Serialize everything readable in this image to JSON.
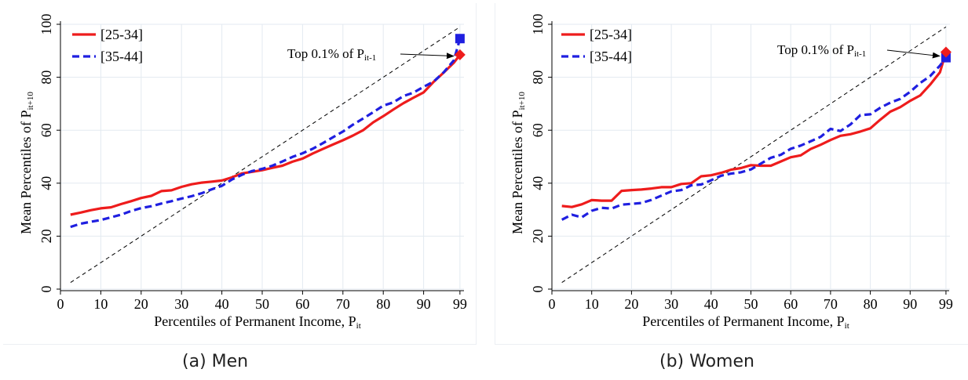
{
  "captions": {
    "panel_a": "(a) Men",
    "panel_b": "(b) Women"
  },
  "colors": {
    "series_25_34": "#ee1c1c",
    "series_35_44": "#1f1fe0",
    "diagonal": "#000000",
    "grid": "#e3eaf0"
  },
  "chart_data": [
    {
      "panel": "men",
      "type": "line",
      "xlabel": "Percentiles of Permanent Income, P",
      "xlabel_sub": "it",
      "ylabel": "Mean Percentiles of P",
      "ylabel_sub": "it+10",
      "xlim": [
        0,
        100
      ],
      "ylim": [
        0,
        100
      ],
      "xticks": [
        0,
        10,
        20,
        30,
        40,
        50,
        60,
        70,
        80,
        90,
        99
      ],
      "yticks": [
        0,
        20,
        40,
        60,
        80,
        100
      ],
      "grid": true,
      "legend": {
        "position": "top-left",
        "entries": [
          "[25-34]",
          "[35-44]"
        ]
      },
      "annotation": {
        "text": "Top 0.1% of P",
        "sub": "it-1",
        "arrow_to": [
          99,
          88
        ]
      },
      "diagonal": [
        [
          2.5,
          2.5
        ],
        [
          99,
          99
        ]
      ],
      "series": [
        {
          "name": "[25-34]",
          "style": "solid",
          "x": [
            2.5,
            5,
            7.5,
            10,
            12.5,
            15,
            17.5,
            20,
            22.5,
            25,
            27.5,
            30,
            32.5,
            35,
            37.5,
            40,
            42.5,
            45,
            47.5,
            50,
            52.5,
            55,
            57.5,
            60,
            62.5,
            65,
            67.5,
            70,
            72.5,
            75,
            77.5,
            80,
            82.5,
            85,
            87.5,
            90,
            92.5,
            95,
            97.5,
            99
          ],
          "y": [
            28.1,
            28.9,
            29.8,
            30.5,
            30.9,
            32.1,
            33.2,
            34.4,
            35.2,
            37.0,
            37.3,
            38.6,
            39.6,
            40.2,
            40.6,
            41.0,
            42.2,
            43.7,
            44.3,
            44.9,
            45.8,
            46.6,
            48.1,
            49.3,
            51.2,
            52.9,
            54.6,
            56.2,
            58.0,
            60.0,
            63.0,
            65.3,
            67.8,
            70.2,
            72.3,
            74.3,
            78.3,
            81.8,
            85.5,
            88.5
          ]
        },
        {
          "name": "[35-44]",
          "style": "dashed",
          "x": [
            2.5,
            5,
            7.5,
            10,
            12.5,
            15,
            17.5,
            20,
            22.5,
            25,
            27.5,
            30,
            32.5,
            35,
            37.5,
            40,
            42.5,
            45,
            47.5,
            50,
            52.5,
            55,
            57.5,
            60,
            62.5,
            65,
            67.5,
            70,
            72.5,
            75,
            77.5,
            80,
            82.5,
            85,
            87.5,
            90,
            92.5,
            95,
            97.5,
            99
          ],
          "y": [
            23.5,
            24.7,
            25.4,
            26.1,
            27.1,
            28.1,
            29.5,
            30.6,
            31.3,
            32.3,
            33.2,
            34.2,
            35.1,
            36.2,
            37.7,
            39.0,
            41.4,
            43.2,
            44.6,
            45.4,
            46.6,
            48.2,
            49.9,
            51.3,
            53.0,
            55.1,
            57.3,
            59.5,
            62.1,
            64.4,
            66.8,
            69.3,
            70.5,
            72.9,
            74.2,
            76.4,
            78.4,
            81.9,
            86.4,
            94.6
          ]
        }
      ]
    },
    {
      "panel": "women",
      "type": "line",
      "xlabel": "Percentiles of Permanent Income, P",
      "xlabel_sub": "it",
      "ylabel": "Mean Percentiles of P",
      "ylabel_sub": "it+10",
      "xlim": [
        0,
        100
      ],
      "ylim": [
        0,
        100
      ],
      "xticks": [
        0,
        10,
        20,
        30,
        40,
        50,
        60,
        70,
        80,
        90,
        99
      ],
      "yticks": [
        0,
        20,
        40,
        60,
        80,
        100
      ],
      "grid": true,
      "legend": {
        "position": "top-left",
        "entries": [
          "[25-34]",
          "[35-44]"
        ]
      },
      "annotation": {
        "text": "Top 0.1% of P",
        "sub": "it-1",
        "arrow_to": [
          99,
          88
        ]
      },
      "diagonal": [
        [
          2.5,
          2.5
        ],
        [
          99,
          99
        ]
      ],
      "series": [
        {
          "name": "[25-34]",
          "style": "solid",
          "x": [
            2.5,
            5,
            7.5,
            10,
            12.5,
            15,
            17.5,
            20,
            22.5,
            25,
            27.5,
            30,
            32.5,
            35,
            37.5,
            40,
            42.5,
            45,
            47.5,
            50,
            52.5,
            55,
            57.5,
            60,
            62.5,
            65,
            67.5,
            70,
            72.5,
            75,
            77.5,
            80,
            82.5,
            85,
            87.5,
            90,
            92.5,
            95,
            97.5,
            99
          ],
          "y": [
            31.4,
            31.0,
            32.0,
            33.6,
            33.4,
            33.4,
            37.1,
            37.4,
            37.6,
            38.0,
            38.5,
            38.5,
            39.7,
            40.0,
            42.6,
            43.0,
            43.9,
            45.1,
            45.7,
            46.8,
            46.6,
            46.6,
            48.2,
            49.8,
            50.5,
            52.9,
            54.5,
            56.3,
            57.9,
            58.5,
            59.5,
            60.7,
            64.0,
            67.0,
            68.7,
            71.1,
            73.1,
            77.2,
            81.9,
            89.5
          ]
        },
        {
          "name": "[35-44]",
          "style": "dashed",
          "x": [
            2.5,
            5,
            7.5,
            10,
            12.5,
            15,
            17.5,
            20,
            22.5,
            25,
            27.5,
            30,
            32.5,
            35,
            37.5,
            40,
            42.5,
            45,
            47.5,
            50,
            52.5,
            55,
            57.5,
            60,
            62.5,
            65,
            67.5,
            70,
            72.5,
            75,
            77.5,
            80,
            82.5,
            85,
            87.5,
            90,
            92.5,
            95,
            97.5,
            99
          ],
          "y": [
            26.2,
            28.1,
            27.1,
            29.6,
            30.7,
            30.4,
            31.9,
            32.2,
            32.5,
            33.7,
            35.3,
            36.9,
            37.4,
            39.2,
            39.5,
            41.1,
            42.8,
            43.6,
            44.1,
            45.2,
            47.4,
            49.6,
            50.7,
            53.0,
            54.2,
            55.8,
            57.5,
            60.5,
            59.7,
            62.2,
            65.7,
            66.0,
            68.5,
            70.4,
            71.8,
            74.5,
            77.8,
            80.4,
            84.4,
            87.4
          ]
        }
      ]
    }
  ]
}
